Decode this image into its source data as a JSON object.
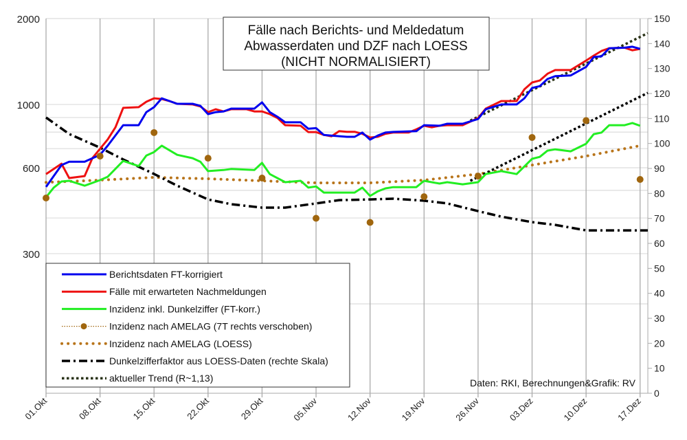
{
  "chart_data": {
    "type": "line",
    "title": [
      "Fälle nach Berichts- und Meldedatum",
      "Abwasserdaten und DZF nach LOESS",
      "(NICHT NORMALISIERT)"
    ],
    "note": "Daten: RKI, Berechnungen&Grafik: RV",
    "x_ticks": [
      "01.Okt",
      "08.Okt",
      "15.Okt",
      "22.Okt",
      "29.Okt",
      "05.Nov",
      "12.Nov",
      "19.Nov",
      "26.Nov",
      "03.Dez",
      "10.Dez",
      "17.Dez"
    ],
    "y_left": {
      "scale": "log",
      "ylim": [
        97,
        2000
      ],
      "tick_labels": [
        "2000",
        "1000",
        "600",
        "300"
      ],
      "grid": [
        200,
        300,
        400,
        500,
        600,
        700,
        800,
        900,
        1000,
        2000
      ]
    },
    "y_right": {
      "scale": "linear",
      "ylim": [
        0,
        150
      ],
      "tick_labels": [
        "0",
        "10",
        "20",
        "30",
        "40",
        "50",
        "60",
        "70",
        "80",
        "90",
        "100",
        "110",
        "120",
        "130",
        "140",
        "150"
      ]
    },
    "legend_position": "bottom-left",
    "series": [
      {
        "name": "Berichtsdaten FT-korrigiert",
        "axis": "left",
        "color": "#0000ee",
        "style": "solid",
        "points": [
          [
            "01.10",
            514
          ],
          [
            "03.10",
            613
          ],
          [
            "04.10",
            630
          ],
          [
            "06.10",
            630
          ],
          [
            "08.10",
            666
          ],
          [
            "09.10",
            717
          ],
          [
            "11.10",
            846
          ],
          [
            "13.10",
            846
          ],
          [
            "14.10",
            940
          ],
          [
            "15.10",
            978
          ],
          [
            "16.10",
            1051
          ],
          [
            "17.10",
            1028
          ],
          [
            "18.10",
            1005
          ],
          [
            "20.10",
            1005
          ],
          [
            "21.10",
            989
          ],
          [
            "22.10",
            925
          ],
          [
            "23.10",
            940
          ],
          [
            "24.10",
            945
          ],
          [
            "25.10",
            967
          ],
          [
            "28.10",
            967
          ],
          [
            "29.10",
            1017
          ],
          [
            "30.10",
            940
          ],
          [
            "31.10",
            905
          ],
          [
            "01.11",
            866
          ],
          [
            "03.11",
            866
          ],
          [
            "04.11",
            822
          ],
          [
            "05.11",
            826
          ],
          [
            "06.11",
            782
          ],
          [
            "07.11",
            778
          ],
          [
            "09.11",
            770
          ],
          [
            "10.11",
            770
          ],
          [
            "11.11",
            797
          ],
          [
            "12.11",
            753
          ],
          [
            "13.11",
            778
          ],
          [
            "14.11",
            797
          ],
          [
            "15.11",
            801
          ],
          [
            "18.11",
            806
          ],
          [
            "19.11",
            846
          ],
          [
            "21.11",
            842
          ],
          [
            "22.11",
            856
          ],
          [
            "24.11",
            856
          ],
          [
            "26.11",
            889
          ],
          [
            "27.11",
            962
          ],
          [
            "29.11",
            1000
          ],
          [
            "01.12",
            1000
          ],
          [
            "02.12",
            1051
          ],
          [
            "03.12",
            1142
          ],
          [
            "04.12",
            1159
          ],
          [
            "05.12",
            1228
          ],
          [
            "06.12",
            1256
          ],
          [
            "08.12",
            1263
          ],
          [
            "10.12",
            1354
          ],
          [
            "11.12",
            1466
          ],
          [
            "12.12",
            1475
          ],
          [
            "13.12",
            1574
          ],
          [
            "15.12",
            1581
          ],
          [
            "16.12",
            1594
          ],
          [
            "17.12",
            1566
          ]
        ]
      },
      {
        "name": "Fälle mit erwarteten Nachmeldungen",
        "axis": "left",
        "color": "#ee1111",
        "style": "solid",
        "points": [
          [
            "01.10",
            570
          ],
          [
            "02.10",
            594
          ],
          [
            "03.10",
            620
          ],
          [
            "04.10",
            552
          ],
          [
            "06.10",
            561
          ],
          [
            "07.10",
            648
          ],
          [
            "09.10",
            754
          ],
          [
            "10.10",
            832
          ],
          [
            "11.10",
            973
          ],
          [
            "13.10",
            978
          ],
          [
            "14.10",
            1022
          ],
          [
            "15.10",
            1051
          ],
          [
            "16.10",
            1045
          ],
          [
            "17.10",
            1028
          ],
          [
            "18.10",
            1005
          ],
          [
            "20.10",
            1000
          ],
          [
            "21.10",
            984
          ],
          [
            "22.10",
            940
          ],
          [
            "23.10",
            962
          ],
          [
            "24.10",
            945
          ],
          [
            "25.10",
            962
          ],
          [
            "27.10",
            962
          ],
          [
            "28.10",
            945
          ],
          [
            "29.10",
            945
          ],
          [
            "30.10",
            925
          ],
          [
            "31.10",
            896
          ],
          [
            "01.11",
            846
          ],
          [
            "03.11",
            842
          ],
          [
            "04.11",
            800
          ],
          [
            "05.11",
            800
          ],
          [
            "06.11",
            782
          ],
          [
            "07.11",
            773
          ],
          [
            "08.11",
            806
          ],
          [
            "09.11",
            802
          ],
          [
            "10.11",
            802
          ],
          [
            "11.11",
            789
          ],
          [
            "12.11",
            766
          ],
          [
            "13.11",
            770
          ],
          [
            "14.11",
            789
          ],
          [
            "15.11",
            797
          ],
          [
            "17.11",
            797
          ],
          [
            "18.11",
            818
          ],
          [
            "19.11",
            842
          ],
          [
            "20.11",
            832
          ],
          [
            "21.11",
            842
          ],
          [
            "22.11",
            846
          ],
          [
            "24.11",
            846
          ],
          [
            "26.11",
            896
          ],
          [
            "27.11",
            967
          ],
          [
            "29.11",
            1028
          ],
          [
            "01.12",
            1028
          ],
          [
            "02.12",
            1130
          ],
          [
            "03.12",
            1194
          ],
          [
            "04.12",
            1213
          ],
          [
            "05.12",
            1282
          ],
          [
            "06.12",
            1320
          ],
          [
            "08.12",
            1320
          ],
          [
            "10.12",
            1425
          ],
          [
            "11.12",
            1483
          ],
          [
            "12.12",
            1540
          ],
          [
            "13.12",
            1574
          ],
          [
            "15.12",
            1581
          ],
          [
            "16.12",
            1548
          ],
          [
            "17.12",
            1566
          ]
        ]
      },
      {
        "name": "Inzidenz inkl. Dunkelziffer (FT-korr.)",
        "axis": "left",
        "color": "#22ee22",
        "style": "solid",
        "points": [
          [
            "01.10",
            473
          ],
          [
            "02.10",
            511
          ],
          [
            "03.10",
            537
          ],
          [
            "04.10",
            540
          ],
          [
            "06.10",
            519
          ],
          [
            "08.10",
            543
          ],
          [
            "09.10",
            558
          ],
          [
            "11.10",
            634
          ],
          [
            "13.10",
            608
          ],
          [
            "14.10",
            662
          ],
          [
            "15.10",
            681
          ],
          [
            "16.10",
            717
          ],
          [
            "18.10",
            666
          ],
          [
            "20.10",
            648
          ],
          [
            "21.10",
            630
          ],
          [
            "22.10",
            584
          ],
          [
            "24.10",
            589
          ],
          [
            "25.10",
            594
          ],
          [
            "28.10",
            589
          ],
          [
            "29.10",
            624
          ],
          [
            "30.10",
            570
          ],
          [
            "01.11",
            534
          ],
          [
            "03.11",
            540
          ],
          [
            "04.11",
            511
          ],
          [
            "05.11",
            516
          ],
          [
            "06.11",
            491
          ],
          [
            "09.11",
            491
          ],
          [
            "10.11",
            491
          ],
          [
            "11.11",
            511
          ],
          [
            "12.11",
            478
          ],
          [
            "13.11",
            496
          ],
          [
            "14.11",
            508
          ],
          [
            "15.11",
            513
          ],
          [
            "18.11",
            513
          ],
          [
            "19.11",
            540
          ],
          [
            "21.11",
            528
          ],
          [
            "22.11",
            534
          ],
          [
            "24.11",
            525
          ],
          [
            "26.11",
            534
          ],
          [
            "27.11",
            570
          ],
          [
            "29.11",
            584
          ],
          [
            "01.12",
            570
          ],
          [
            "03.12",
            645
          ],
          [
            "04.12",
            655
          ],
          [
            "05.12",
            689
          ],
          [
            "06.12",
            696
          ],
          [
            "08.12",
            685
          ],
          [
            "10.12",
            728
          ],
          [
            "11.12",
            787
          ],
          [
            "12.12",
            797
          ],
          [
            "13.12",
            846
          ],
          [
            "15.12",
            846
          ],
          [
            "16.12",
            861
          ],
          [
            "17.12",
            842
          ]
        ]
      },
      {
        "name": "Inzidenz nach AMELAG (7T rechts verschoben)",
        "axis": "left",
        "color": "#a0660e",
        "style": "dotted-marker",
        "points": [
          [
            "01.10",
            470
          ],
          [
            "08.10",
            659
          ],
          [
            "15.10",
            797
          ],
          [
            "22.10",
            648
          ],
          [
            "29.10",
            552
          ],
          [
            "05.11",
            399
          ],
          [
            "12.11",
            386
          ],
          [
            "19.11",
            475
          ],
          [
            "26.11",
            561
          ],
          [
            "03.12",
            766
          ],
          [
            "10.12",
            878
          ],
          [
            "17.12",
            546
          ]
        ]
      },
      {
        "name": "Inzidenz nach AMELAG (LOESS)",
        "axis": "left",
        "color": "#b8741a",
        "style": "dotted",
        "points": [
          [
            "01.10",
            533
          ],
          [
            "08.10",
            543
          ],
          [
            "15.10",
            555
          ],
          [
            "22.10",
            549
          ],
          [
            "29.10",
            540
          ],
          [
            "05.11",
            531
          ],
          [
            "12.11",
            531
          ],
          [
            "19.11",
            543
          ],
          [
            "26.11",
            570
          ],
          [
            "03.12",
            613
          ],
          [
            "10.12",
            659
          ],
          [
            "17.12",
            717
          ]
        ]
      },
      {
        "name": "Dunkelzifferfaktor aus LOESS-Daten (rechte Skala)",
        "axis": "right",
        "color": "#000000",
        "style": "dashdot",
        "points": [
          [
            "01.10",
            110.4
          ],
          [
            "04.10",
            103.8
          ],
          [
            "08.10",
            98.3
          ],
          [
            "11.10",
            93.6
          ],
          [
            "15.10",
            87.8
          ],
          [
            "18.10",
            83.1
          ],
          [
            "22.10",
            77.6
          ],
          [
            "25.10",
            75.7
          ],
          [
            "29.10",
            74.3
          ],
          [
            "01.11",
            74.3
          ],
          [
            "05.11",
            76.0
          ],
          [
            "08.11",
            77.3
          ],
          [
            "12.11",
            77.6
          ],
          [
            "15.11",
            77.9
          ],
          [
            "19.11",
            77.1
          ],
          [
            "22.11",
            76.0
          ],
          [
            "26.11",
            72.9
          ],
          [
            "29.11",
            70.7
          ],
          [
            "03.12",
            68.5
          ],
          [
            "06.12",
            67.4
          ],
          [
            "10.12",
            65.2
          ],
          [
            "18.12",
            65.2
          ]
        ]
      },
      {
        "name": "aktueller Trend (R~1,13)",
        "axis": "left",
        "color": "#2a3318",
        "style": "dotted-dense",
        "points": [
          [
            "25.11",
            878
          ],
          [
            "18.12",
            1778
          ]
        ]
      },
      {
        "axis": "left",
        "color": "#000000",
        "style": "dotted-dense",
        "points": [
          [
            "25.11",
            540
          ],
          [
            "18.12",
            1098
          ]
        ]
      }
    ]
  }
}
